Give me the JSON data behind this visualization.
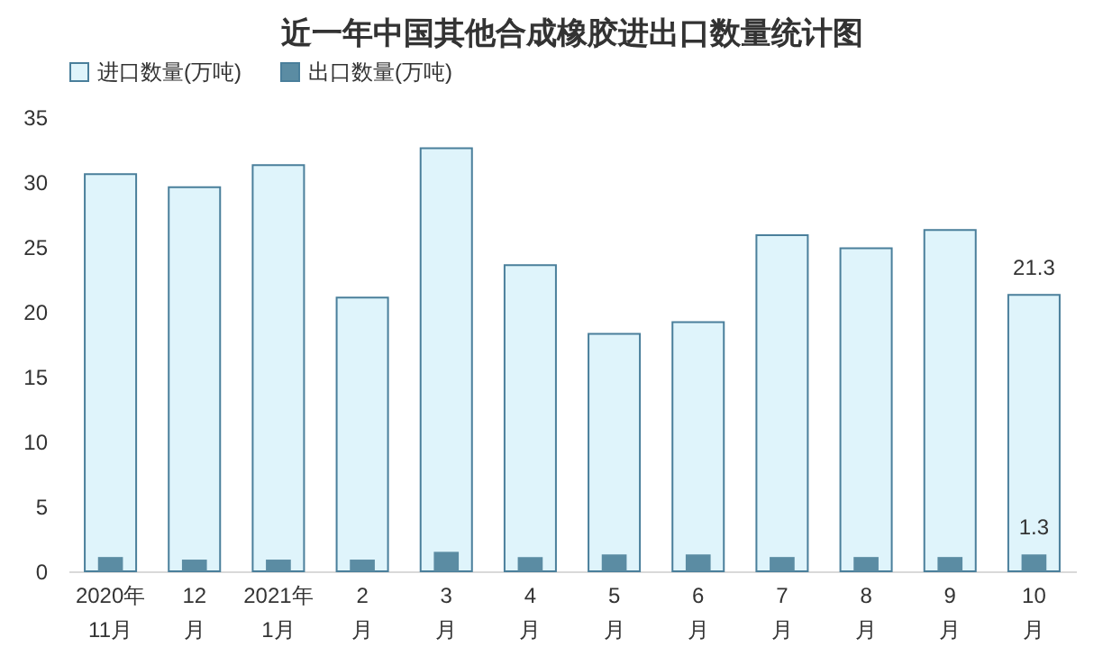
{
  "chart_data": {
    "type": "bar",
    "title": "近一年中国其他合成橡胶进出口数量统计图",
    "categories": [
      "2020年\n11月",
      "12\n月",
      "2021年\n1月",
      "2\n月",
      "3\n月",
      "4\n月",
      "5\n月",
      "6\n月",
      "7\n月",
      "8\n月",
      "9\n月",
      "10\n月"
    ],
    "series": [
      {
        "name": "进口数量(万吨)",
        "color": "#dff4fb",
        "values": [
          30.6,
          29.6,
          31.3,
          21.1,
          32.6,
          23.6,
          18.3,
          19.2,
          25.9,
          24.9,
          26.3,
          21.3
        ],
        "value_labels": [
          null,
          null,
          null,
          null,
          null,
          null,
          null,
          null,
          null,
          null,
          null,
          "21.3"
        ]
      },
      {
        "name": "出口数量(万吨)",
        "color": "#5b8ca3",
        "values": [
          1.1,
          0.9,
          0.9,
          0.9,
          1.5,
          1.1,
          1.3,
          1.3,
          1.1,
          1.1,
          1.1,
          1.3
        ],
        "value_labels": [
          null,
          null,
          null,
          null,
          null,
          null,
          null,
          null,
          null,
          null,
          null,
          "1.3"
        ]
      }
    ],
    "ylim": [
      0,
      35
    ],
    "yticks": [
      0,
      5,
      10,
      15,
      20,
      25,
      30,
      35
    ],
    "grid": false,
    "legend": "top"
  }
}
